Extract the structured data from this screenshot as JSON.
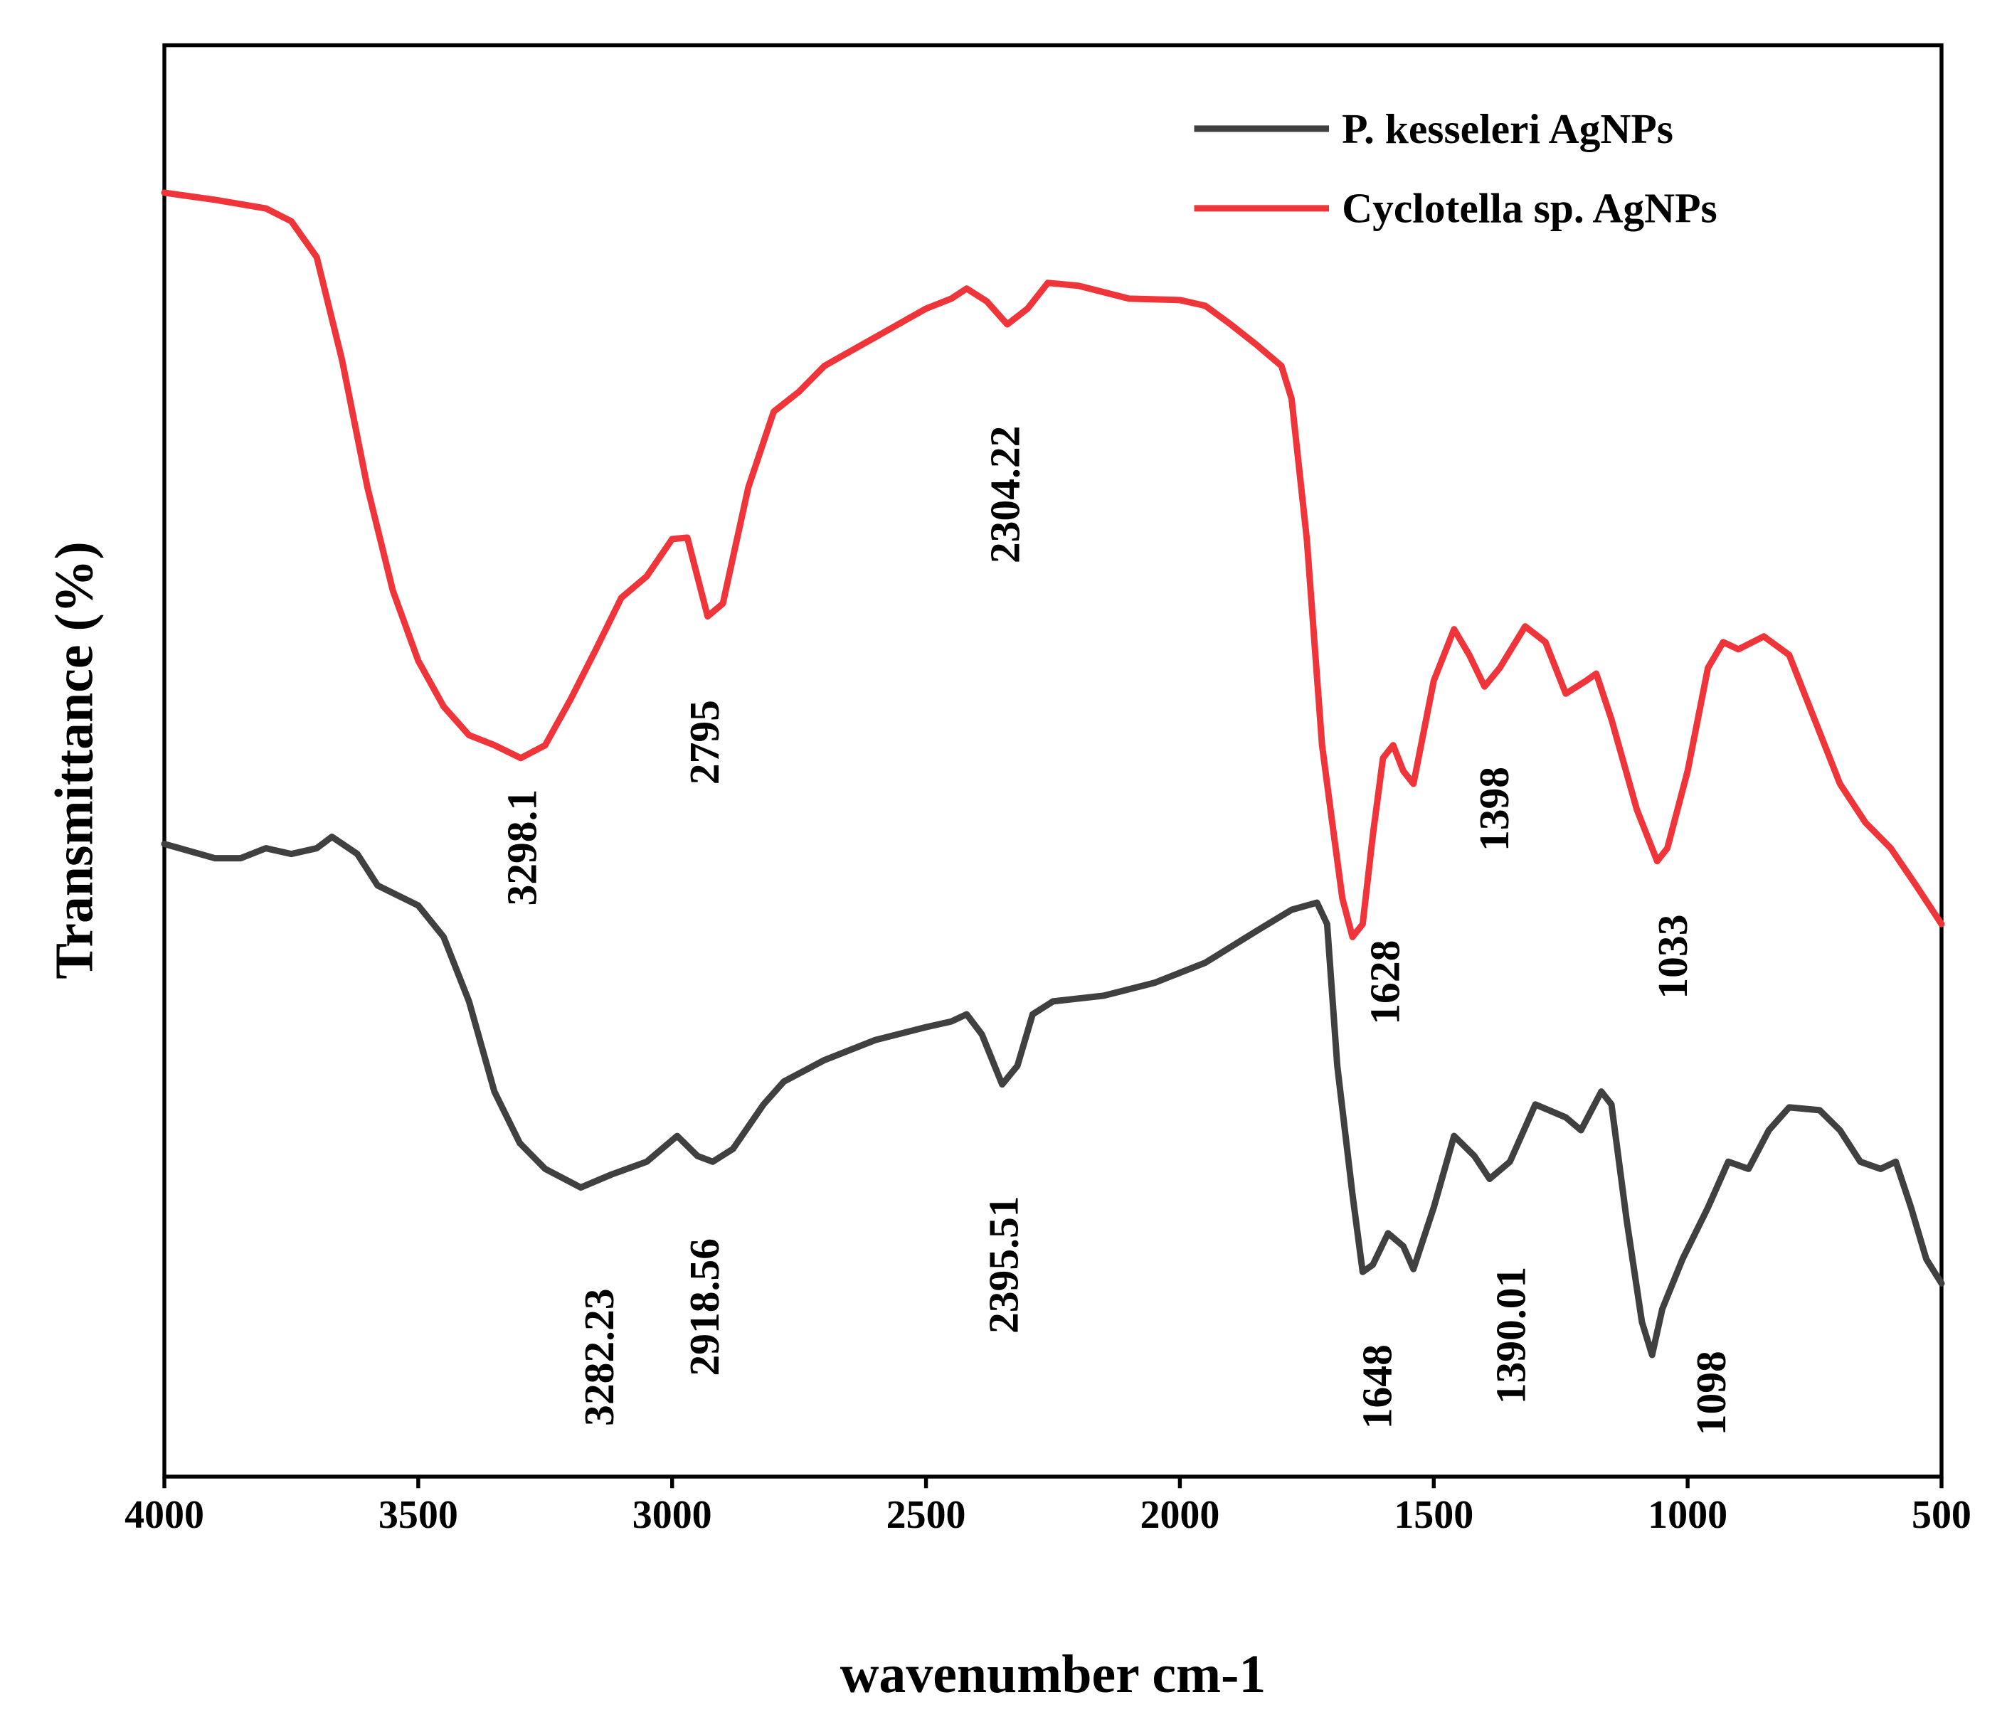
{
  "chart_data": {
    "type": "line",
    "xlabel": "wavenumber cm-1",
    "ylabel": "Transmittance (%)",
    "xlim": [
      4000,
      500
    ],
    "ylim": [
      0,
      100
    ],
    "xticks": [
      4000,
      3500,
      3000,
      2500,
      2000,
      1500,
      1000,
      500
    ],
    "legend": "upper right",
    "series": [
      {
        "name": "P. kesseleri AgNPs",
        "color": "#404040",
        "x": [
          4000,
          3900,
          3850,
          3800,
          3750,
          3700,
          3670,
          3620,
          3580,
          3500,
          3450,
          3400,
          3350,
          3300,
          3250,
          3180,
          3120,
          3050,
          2990,
          2950,
          2920,
          2880,
          2820,
          2780,
          2700,
          2600,
          2500,
          2450,
          2420,
          2390,
          2350,
          2320,
          2290,
          2250,
          2150,
          2050,
          1950,
          1850,
          1780,
          1730,
          1710,
          1690,
          1660,
          1640,
          1620,
          1590,
          1560,
          1540,
          1500,
          1460,
          1420,
          1390,
          1350,
          1300,
          1240,
          1210,
          1170,
          1150,
          1120,
          1090,
          1070,
          1050,
          1010,
          960,
          920,
          880,
          840,
          800,
          740,
          700,
          660,
          620,
          590,
          560,
          530,
          500
        ],
        "values": [
          44.2,
          43.2,
          43.2,
          43.9,
          43.5,
          43.9,
          44.7,
          43.5,
          41.3,
          39.9,
          37.7,
          33.2,
          26.9,
          23.3,
          21.5,
          20.2,
          21.1,
          22.0,
          23.8,
          22.4,
          22.0,
          22.9,
          26.0,
          27.6,
          29.1,
          30.5,
          31.4,
          31.8,
          32.3,
          30.9,
          27.4,
          28.7,
          32.3,
          33.2,
          33.6,
          34.5,
          35.9,
          38.1,
          39.6,
          40.1,
          38.6,
          28.7,
          19.7,
          14.3,
          14.8,
          17.0,
          16.1,
          14.5,
          18.8,
          23.8,
          22.4,
          20.8,
          22.0,
          26.0,
          25.1,
          24.2,
          26.9,
          26.0,
          17.9,
          10.8,
          8.5,
          11.7,
          15.2,
          18.8,
          22.0,
          21.5,
          24.2,
          25.8,
          25.6,
          24.2,
          22.0,
          21.5,
          22.0,
          18.8,
          15.2,
          13.5
        ]
      },
      {
        "name": "Cyclotella sp. AgNPs",
        "color": "#f0353a",
        "x": [
          4000,
          3900,
          3800,
          3750,
          3700,
          3650,
          3600,
          3550,
          3500,
          3450,
          3400,
          3350,
          3298,
          3250,
          3200,
          3150,
          3100,
          3050,
          3000,
          2970,
          2930,
          2900,
          2850,
          2800,
          2750,
          2700,
          2600,
          2500,
          2450,
          2420,
          2380,
          2340,
          2300,
          2260,
          2200,
          2100,
          2000,
          1950,
          1900,
          1850,
          1800,
          1780,
          1750,
          1720,
          1700,
          1680,
          1660,
          1640,
          1620,
          1600,
          1580,
          1560,
          1540,
          1500,
          1460,
          1430,
          1400,
          1370,
          1320,
          1280,
          1240,
          1200,
          1180,
          1150,
          1100,
          1060,
          1040,
          1000,
          960,
          930,
          900,
          850,
          800,
          750,
          700,
          650,
          600,
          550,
          500
        ],
        "values": [
          89.7,
          89.2,
          88.6,
          87.7,
          85.2,
          78.0,
          69.1,
          61.9,
          57.0,
          53.8,
          51.8,
          51.1,
          50.2,
          51.1,
          54.3,
          57.8,
          61.4,
          62.9,
          65.5,
          65.6,
          60.1,
          61.0,
          69.1,
          74.4,
          75.8,
          77.6,
          79.6,
          81.6,
          82.3,
          83.0,
          82.1,
          80.5,
          81.6,
          83.4,
          83.2,
          82.3,
          82.2,
          81.8,
          80.5,
          79.1,
          77.6,
          75.3,
          65.5,
          51.1,
          45.7,
          40.4,
          37.7,
          38.6,
          44.8,
          50.2,
          51.1,
          49.3,
          48.4,
          55.6,
          59.2,
          57.4,
          55.2,
          56.5,
          59.4,
          58.3,
          54.7,
          55.6,
          56.1,
          52.9,
          46.6,
          43.0,
          43.9,
          49.3,
          56.5,
          58.3,
          57.8,
          58.7,
          57.4,
          52.9,
          48.4,
          45.7,
          43.9,
          41.3,
          38.6
        ]
      }
    ],
    "annotations": [
      "3298.1",
      "2795",
      "2304.22",
      "1628",
      "1398",
      "1033",
      "3282.23",
      "2918.56",
      "2395.51",
      "1648",
      "1390.01",
      "1098"
    ]
  }
}
